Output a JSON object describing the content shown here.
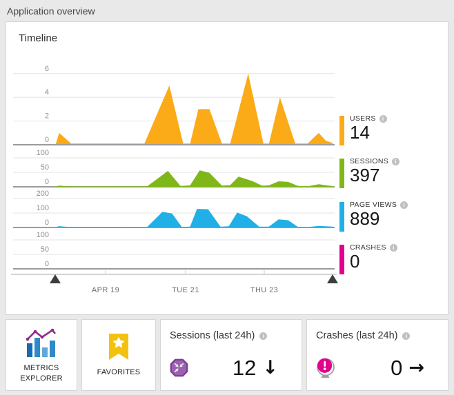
{
  "page": {
    "title": "Application overview",
    "background": "#e9e9e9"
  },
  "timeline": {
    "title": "Timeline",
    "x_axis_labels": [
      "APR 19",
      "TUE 21",
      "THU 23"
    ],
    "info_icon": "i",
    "metrics": [
      {
        "label": "USERS",
        "value": "14",
        "color": "#fbab18"
      },
      {
        "label": "SESSIONS",
        "value": "397",
        "color": "#7fb718"
      },
      {
        "label": "PAGE VIEWS",
        "value": "889",
        "color": "#20b0e6"
      },
      {
        "label": "CRASHES",
        "value": "0",
        "color": "#e3008c"
      }
    ]
  },
  "chart_data": [
    {
      "type": "area",
      "name": "Users",
      "color": "#fbab18",
      "ylim": [
        0,
        6
      ],
      "yticks": [
        6,
        4,
        2,
        0
      ],
      "points": [
        [
          0,
          0.1
        ],
        [
          0.012,
          1
        ],
        [
          0.055,
          0.1
        ],
        [
          0.32,
          0.1
        ],
        [
          0.41,
          5
        ],
        [
          0.46,
          0.1
        ],
        [
          0.485,
          0.1
        ],
        [
          0.515,
          3
        ],
        [
          0.555,
          3
        ],
        [
          0.6,
          0.1
        ],
        [
          0.63,
          0.1
        ],
        [
          0.695,
          6
        ],
        [
          0.75,
          0.1
        ],
        [
          0.77,
          0.1
        ],
        [
          0.81,
          4
        ],
        [
          0.865,
          0.1
        ],
        [
          0.91,
          0.1
        ],
        [
          0.95,
          1
        ],
        [
          0.975,
          0.35
        ],
        [
          1,
          0.15
        ]
      ]
    },
    {
      "type": "area",
      "name": "Sessions",
      "color": "#7fb718",
      "ylim": [
        0,
        100
      ],
      "yticks": [
        100,
        50,
        0
      ],
      "points": [
        [
          0,
          1
        ],
        [
          0.012,
          4
        ],
        [
          0.05,
          1.5
        ],
        [
          0.33,
          2
        ],
        [
          0.37,
          30
        ],
        [
          0.405,
          55
        ],
        [
          0.45,
          3
        ],
        [
          0.485,
          5
        ],
        [
          0.52,
          57
        ],
        [
          0.555,
          48
        ],
        [
          0.6,
          4
        ],
        [
          0.63,
          6
        ],
        [
          0.66,
          35
        ],
        [
          0.71,
          20
        ],
        [
          0.745,
          4
        ],
        [
          0.77,
          5
        ],
        [
          0.805,
          19
        ],
        [
          0.84,
          17
        ],
        [
          0.875,
          3
        ],
        [
          0.91,
          2
        ],
        [
          0.95,
          9
        ],
        [
          0.985,
          4
        ],
        [
          1,
          3
        ]
      ]
    },
    {
      "type": "area",
      "name": "Page views",
      "color": "#20b0e6",
      "ylim": [
        0,
        200
      ],
      "yticks": [
        200,
        100,
        0
      ],
      "points": [
        [
          0,
          3
        ],
        [
          0.012,
          9
        ],
        [
          0.05,
          3
        ],
        [
          0.33,
          4
        ],
        [
          0.385,
          108
        ],
        [
          0.42,
          96
        ],
        [
          0.455,
          4
        ],
        [
          0.485,
          6
        ],
        [
          0.51,
          128
        ],
        [
          0.55,
          126
        ],
        [
          0.595,
          5
        ],
        [
          0.625,
          8
        ],
        [
          0.655,
          103
        ],
        [
          0.69,
          78
        ],
        [
          0.735,
          5
        ],
        [
          0.77,
          6
        ],
        [
          0.805,
          56
        ],
        [
          0.84,
          50
        ],
        [
          0.875,
          4
        ],
        [
          0.91,
          3
        ],
        [
          0.95,
          11
        ],
        [
          1,
          6
        ]
      ]
    },
    {
      "type": "area",
      "name": "Crashes",
      "color": "#e3008c",
      "ylim": [
        0,
        100
      ],
      "yticks": [
        100,
        50,
        0
      ],
      "points": [
        [
          0,
          0
        ],
        [
          1,
          0
        ]
      ]
    }
  ],
  "tiles": {
    "metrics_explorer": {
      "label": "METRICS EXPLORER"
    },
    "favorites": {
      "label": "FAVORITES"
    },
    "sessions_24h": {
      "title": "Sessions (last 24h)",
      "value": "12",
      "trend": "down",
      "trend_arrow": "↓"
    },
    "crashes_24h": {
      "title": "Crashes (last 24h)",
      "value": "0",
      "trend": "flat",
      "trend_arrow": "→"
    }
  },
  "colors": {
    "favorites_gold": "#f3c211",
    "octagon_purple": "#9a63ae",
    "octagon_border": "#7a3f91",
    "crash_pink": "#e3008c",
    "bar_blue_dark": "#1b69b0",
    "bar_blue_mid": "#2f8ac9",
    "bar_blue_light": "#5fa8d8",
    "line_purple": "#92278f",
    "slider_handle": "#3d3d3d"
  }
}
